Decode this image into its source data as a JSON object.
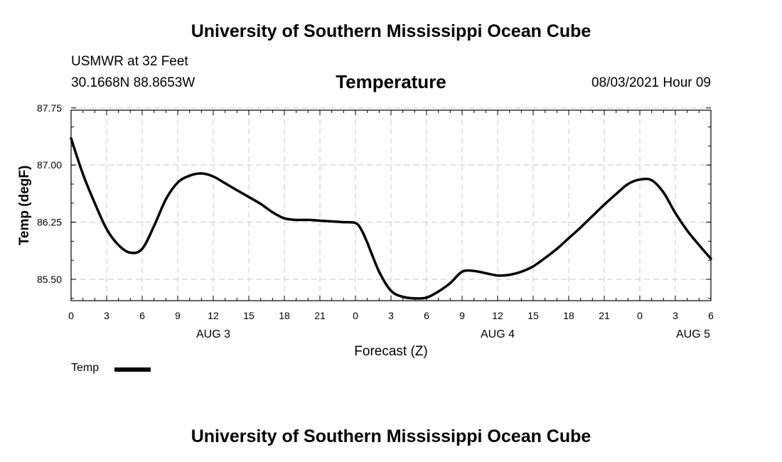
{
  "header": {
    "title": "University of Southern Mississippi Ocean Cube",
    "station": "USMWR at 32 Feet",
    "coords": "30.1668N  88.8653W",
    "chart_title": "Temperature",
    "datetime": "08/03/2021 Hour 09"
  },
  "footer": {
    "title": "University of Southern Mississippi Ocean Cube"
  },
  "chart_data": {
    "type": "line",
    "title": "Temperature",
    "xlabel": "Forecast (Z)",
    "ylabel": "Temp (degF)",
    "xlim": [
      0,
      54
    ],
    "ylim": [
      85.22,
      87.72
    ],
    "grid": true,
    "x_ticks": [
      0,
      3,
      6,
      9,
      12,
      15,
      18,
      21,
      24,
      27,
      30,
      33,
      36,
      39,
      42,
      45,
      48,
      51,
      54
    ],
    "x_tick_labels": [
      "0",
      "3",
      "6",
      "9",
      "12",
      "15",
      "18",
      "21",
      "0",
      "3",
      "6",
      "9",
      "12",
      "15",
      "18",
      "21",
      "0",
      "3",
      "6"
    ],
    "date_labels": [
      {
        "x": 12,
        "label": "AUG 3"
      },
      {
        "x": 36,
        "label": "AUG 4"
      },
      {
        "x": 52.5,
        "label": "AUG 5"
      }
    ],
    "y_ticks": [
      85.5,
      86.25,
      87.0,
      87.75
    ],
    "y_tick_labels": [
      "85.50",
      "86.25",
      "87.00",
      "87.75"
    ],
    "legend": {
      "label": "Temp",
      "position": "bottom-left"
    },
    "series": [
      {
        "name": "Temp",
        "color": "#000000",
        "x": [
          0,
          1,
          2,
          3,
          4,
          5,
          6,
          7,
          8,
          9,
          10,
          11,
          12,
          13,
          14,
          15,
          16,
          17,
          18,
          19,
          20,
          21,
          22,
          23,
          24,
          24.5,
          25,
          26,
          27,
          28,
          29,
          30,
          31,
          32,
          33,
          34,
          35,
          36,
          37,
          38,
          39,
          40,
          41,
          42,
          43,
          44,
          45,
          46,
          47,
          48,
          49,
          50,
          51,
          52,
          53,
          54
        ],
        "values": [
          87.35,
          86.88,
          86.5,
          86.16,
          85.95,
          85.85,
          85.9,
          86.2,
          86.55,
          86.77,
          86.86,
          86.89,
          86.85,
          86.76,
          86.67,
          86.58,
          86.49,
          86.38,
          86.3,
          86.28,
          86.28,
          86.27,
          86.26,
          86.25,
          86.24,
          86.15,
          85.98,
          85.6,
          85.35,
          85.27,
          85.25,
          85.26,
          85.34,
          85.45,
          85.6,
          85.61,
          85.58,
          85.55,
          85.56,
          85.6,
          85.67,
          85.78,
          85.9,
          86.04,
          86.18,
          86.33,
          86.48,
          86.62,
          86.75,
          86.81,
          86.8,
          86.64,
          86.37,
          86.14,
          85.95,
          85.77
        ]
      }
    ]
  }
}
